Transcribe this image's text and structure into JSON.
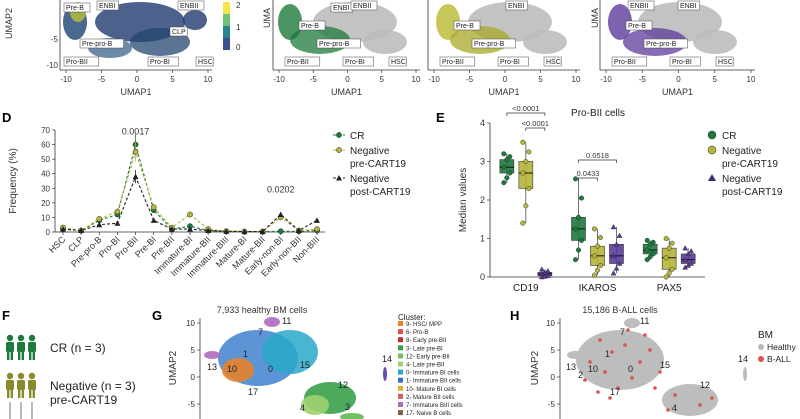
{
  "top_umaps": {
    "xlabel": "UMAP1",
    "ylabel": "UMAP2",
    "xticks": [
      "-10",
      "-5",
      "0",
      "5",
      "10"
    ],
    "yticks": [
      "-5",
      "-10"
    ],
    "colorbar_ticks": [
      "2",
      "1",
      "0"
    ],
    "panel1_labels": [
      "Pre-B",
      "ENBI",
      "Pre-pro-B",
      "CLP",
      "Pro-BII",
      "Pro-BI",
      "HSC"
    ],
    "panel_common_labels": [
      "Pre-B",
      "ENBI",
      "ENBII",
      "Pre-pro-B",
      "Pro-BII",
      "Pro-BI",
      "HSC"
    ],
    "panel_colors": [
      "#3b4f8c",
      "#1e7a3c",
      "#b8b830",
      "#5c3b9c"
    ]
  },
  "panel_d": {
    "letter": "D",
    "chart_data": {
      "type": "line",
      "ylabel": "Frequency (%)",
      "ylim": [
        0,
        70
      ],
      "yticks": [
        0,
        10,
        20,
        30,
        40,
        50,
        60,
        70
      ],
      "categories": [
        "HSC",
        "CLP",
        "Pre-pro-B",
        "Pro-BI",
        "Pro-BII",
        "Pre-BI",
        "Pre-BII",
        "Immature-BI",
        "Immature-BII",
        "Immature-BIII",
        "Mature-BI",
        "Mature-BII",
        "Early-non-BI",
        "Early-non-BII",
        "Non-BIII"
      ],
      "series": [
        {
          "name": "CR",
          "color": "#1e7a3c",
          "values": [
            2,
            1,
            8,
            12,
            60,
            15,
            2,
            4,
            1,
            0.5,
            0.3,
            0.3,
            0.5,
            0.5,
            1
          ]
        },
        {
          "name": "Negative pre-CART19",
          "color": "#b5b53a",
          "values": [
            3,
            1,
            9,
            14,
            55,
            17,
            3,
            12,
            2,
            0.5,
            0.3,
            0.3,
            10,
            1,
            2
          ]
        },
        {
          "name": "Negative post-CART19",
          "color": "#222222",
          "values": [
            2,
            1,
            5,
            6,
            38,
            8,
            2,
            2,
            1,
            0.5,
            0.3,
            0.3,
            12,
            1,
            8
          ]
        }
      ],
      "annotations": [
        {
          "category": "Pro-BII",
          "text": "0.0017",
          "y": 67
        },
        {
          "category": "Early-non-BI",
          "text": "0.0202",
          "y": 27
        }
      ]
    }
  },
  "panel_e": {
    "letter": "E",
    "chart_data": {
      "type": "box",
      "title": "Pro-BII cells",
      "ylabel": "Median values",
      "ylim": [
        0,
        4
      ],
      "yticks": [
        0,
        1,
        2,
        3,
        4
      ],
      "groups": [
        "CD19",
        "IKAROS",
        "PAX5"
      ],
      "series": [
        {
          "name": "CR",
          "color": "#1e7a3c",
          "boxes": [
            {
              "q1": 2.7,
              "med": 2.85,
              "q3": 3.05,
              "min": 2.45,
              "max": 3.2
            },
            {
              "q1": 0.95,
              "med": 1.25,
              "q3": 1.55,
              "min": 0.45,
              "max": 2.55
            },
            {
              "q1": 0.6,
              "med": 0.7,
              "q3": 0.85,
              "min": 0.45,
              "max": 0.95
            }
          ]
        },
        {
          "name": "Negative pre-CART19",
          "color": "#b5b53a",
          "boxes": [
            {
              "q1": 2.3,
              "med": 2.7,
              "q3": 3.0,
              "min": 1.4,
              "max": 3.5
            },
            {
              "q1": 0.3,
              "med": 0.55,
              "q3": 0.8,
              "min": 0.05,
              "max": 1.25
            },
            {
              "q1": 0.2,
              "med": 0.5,
              "q3": 0.75,
              "min": 0.0,
              "max": 1.0
            }
          ]
        },
        {
          "name": "Negative post-CART19",
          "color": "#5c3b9c",
          "boxes": [
            {
              "q1": 0.03,
              "med": 0.08,
              "q3": 0.12,
              "min": 0.0,
              "max": 0.2
            },
            {
              "q1": 0.35,
              "med": 0.55,
              "q3": 0.85,
              "min": 0.1,
              "max": 1.3
            },
            {
              "q1": 0.35,
              "med": 0.45,
              "q3": 0.6,
              "min": 0.25,
              "max": 0.75
            }
          ]
        }
      ],
      "pvalues": [
        "<0.0001",
        "<0.0001",
        "0.0518",
        "0.0433"
      ]
    }
  },
  "legend_d": [
    "CR",
    "Negative",
    "pre-CART19",
    "Negative",
    "post-CART19"
  ],
  "legend_e": [
    "CR",
    "Negative",
    "pre-CART19",
    "Negative",
    "post-CART19"
  ],
  "panel_f": {
    "letter": "F",
    "rows": [
      "CR (n = 3)",
      "Negative (n = 3)",
      "pre-CART19"
    ]
  },
  "panel_g": {
    "letter": "G",
    "title": "7,933 healthy BM cells",
    "ylabel": "UMAP2",
    "yticks": [
      "10",
      "5",
      "0",
      "-5"
    ],
    "cluster_labels": [
      "11",
      "7",
      "1",
      "13",
      "10",
      "0",
      "15",
      "14",
      "12",
      "17",
      "4",
      "3"
    ],
    "legend_title": "Cluster:",
    "legend_items": [
      {
        "label": "9- HSC/ MPP",
        "color": "#e7822c"
      },
      {
        "label": "6- Pro-B",
        "color": "#e05050"
      },
      {
        "label": "8- Early pre-BII",
        "color": "#c03030"
      },
      {
        "label": "3- Late pre-BI",
        "color": "#3aa04a"
      },
      {
        "label": "12- Early pre-BII",
        "color": "#70c060"
      },
      {
        "label": "4- Late pre-BII",
        "color": "#a0d070"
      },
      {
        "label": "0- Immature BI cells",
        "color": "#2aa8c8"
      },
      {
        "label": "1- Immature BII cells",
        "color": "#3a6ec8"
      },
      {
        "label": "10- Mature BI cells",
        "color": "#e0b030"
      },
      {
        "label": "2- Mature BII cells",
        "color": "#d06060"
      },
      {
        "label": "7- Immature BIII cells",
        "color": "#b06ac0"
      },
      {
        "label": "17- Naive B cells",
        "color": "#806040"
      }
    ]
  },
  "panel_h": {
    "letter": "H",
    "title": "15,186 B-ALL cells",
    "ylabel": "UMAP2",
    "yticks": [
      "10",
      "5",
      "0",
      "-5"
    ],
    "cluster_labels": [
      "11",
      "7",
      "1",
      "13",
      "10",
      "0",
      "15",
      "14",
      "12",
      "17",
      "2",
      "4"
    ],
    "legend_title": "BM",
    "legend_items": [
      {
        "label": "Healthy",
        "color": "#b8b8b8"
      },
      {
        "label": "B-ALL",
        "color": "#e05050"
      }
    ]
  }
}
